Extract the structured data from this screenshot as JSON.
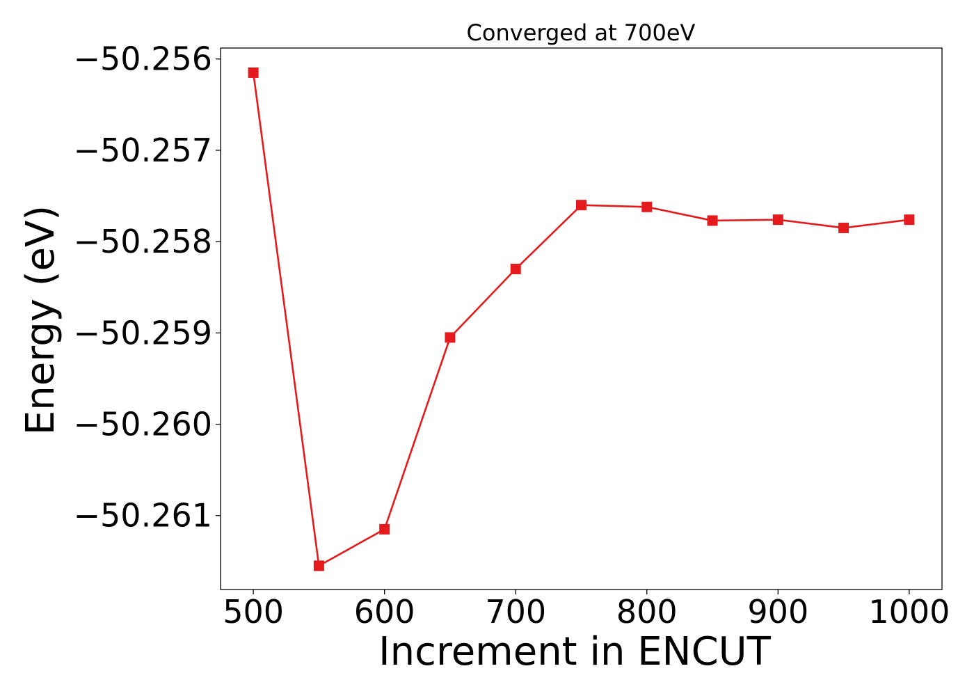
{
  "chart_data": {
    "type": "line",
    "title": "Converged at 700eV",
    "xlabel": "Increment in ENCUT",
    "ylabel": "Energy (eV)",
    "x": [
      500,
      550,
      600,
      650,
      700,
      750,
      800,
      850,
      900,
      950,
      1000
    ],
    "series": [
      {
        "values": [
          -50.25615,
          -50.26155,
          -50.26115,
          -50.25905,
          -50.2583,
          -50.2576,
          -50.25762,
          -50.25777,
          -50.25776,
          -50.25785,
          -50.25776
        ],
        "color": "#e41a1c",
        "marker": "square"
      }
    ],
    "xlim": [
      475,
      1025
    ],
    "ylim": [
      -50.26181,
      -50.25588
    ],
    "xticks": [
      500,
      600,
      700,
      800,
      900,
      1000
    ],
    "xtick_labels": [
      "500",
      "600",
      "700",
      "800",
      "900",
      "1000"
    ],
    "yticks": [
      -50.256,
      -50.257,
      -50.258,
      -50.259,
      -50.26,
      -50.261
    ],
    "ytick_labels": [
      "−50.256",
      "−50.257",
      "−50.258",
      "−50.259",
      "−50.260",
      "−50.261"
    ],
    "grid": false,
    "legend": "none"
  }
}
